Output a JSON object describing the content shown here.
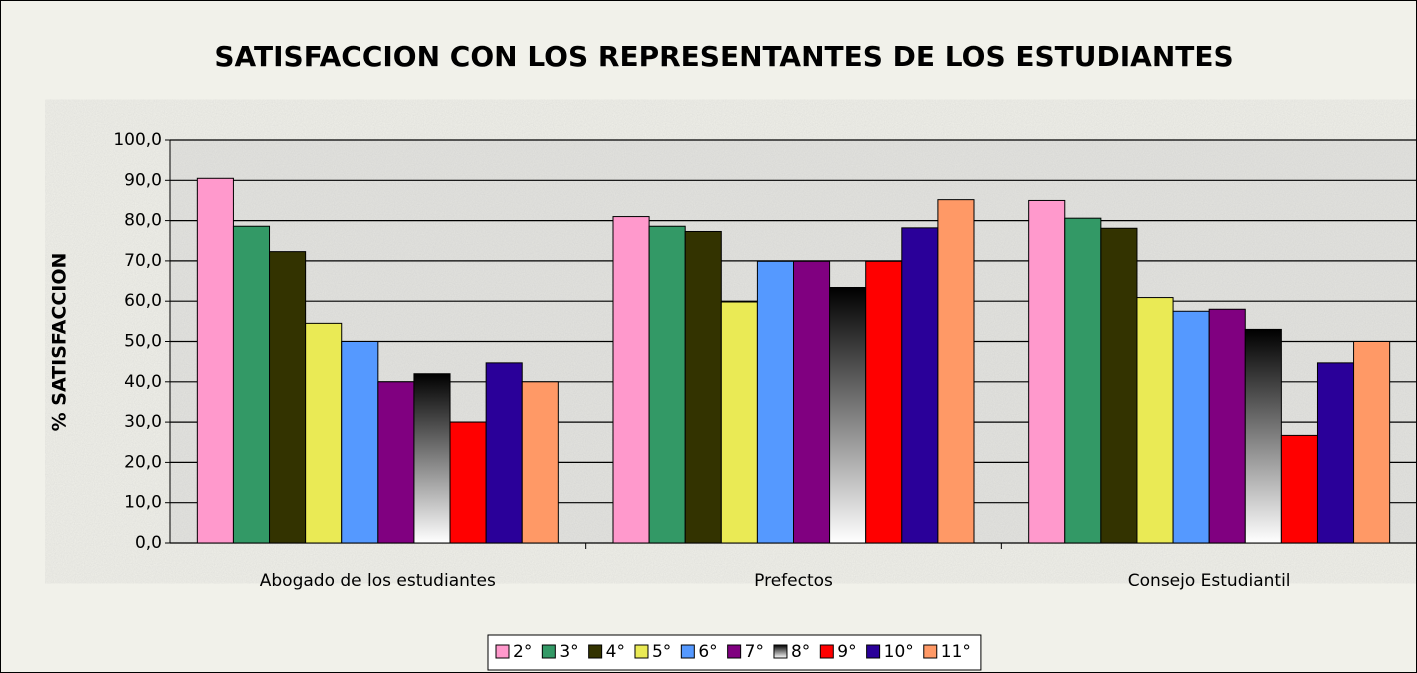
{
  "chart_data": {
    "type": "bar",
    "title": "SATISFACCION CON LOS REPRESENTANTES DE LOS ESTUDIANTES",
    "y_label": "% SATISFACCION",
    "categories": [
      "Abogado de los estudiantes",
      "Prefectos",
      "Consejo Estudiantil"
    ],
    "series": [
      {
        "name": "2°",
        "color": "#ff99cc",
        "values": [
          90.5,
          81.0,
          85.0
        ]
      },
      {
        "name": "3°",
        "color": "#339966",
        "values": [
          78.6,
          78.6,
          80.6
        ]
      },
      {
        "name": "4°",
        "color": "#333300",
        "values": [
          72.3,
          77.3,
          78.1
        ]
      },
      {
        "name": "5°",
        "color": "#eaea55",
        "values": [
          54.5,
          59.8,
          60.9
        ]
      },
      {
        "name": "6°",
        "color": "#5599ff",
        "values": [
          50.0,
          69.9,
          57.5
        ]
      },
      {
        "name": "7°",
        "color": "#800080",
        "values": [
          40.0,
          69.9,
          58.0
        ]
      },
      {
        "name": "8°",
        "color": "#000000",
        "values": [
          42.0,
          63.4,
          53.0
        ]
      },
      {
        "name": "9°",
        "color": "#ff0000",
        "values": [
          30.0,
          69.9,
          26.7
        ]
      },
      {
        "name": "10°",
        "color": "#2a0099",
        "values": [
          44.7,
          78.2,
          44.7
        ]
      },
      {
        "name": "11°",
        "color": "#ff9966",
        "values": [
          40.0,
          85.2,
          50.0
        ]
      }
    ],
    "ylim": [
      0,
      100
    ],
    "yticks": [
      {
        "value": 0,
        "label": "0,0"
      },
      {
        "value": 10,
        "label": "10,0"
      },
      {
        "value": 20,
        "label": "20,0"
      },
      {
        "value": 30,
        "label": "30,0"
      },
      {
        "value": 40,
        "label": "40,0"
      },
      {
        "value": 50,
        "label": "50,0"
      },
      {
        "value": 60,
        "label": "60,0"
      },
      {
        "value": 70,
        "label": "70,0"
      },
      {
        "value": 80,
        "label": "80,0"
      },
      {
        "value": 90,
        "label": "90,0"
      },
      {
        "value": 100,
        "label": "100,0"
      }
    ],
    "grid": true,
    "legend": "bottom"
  }
}
